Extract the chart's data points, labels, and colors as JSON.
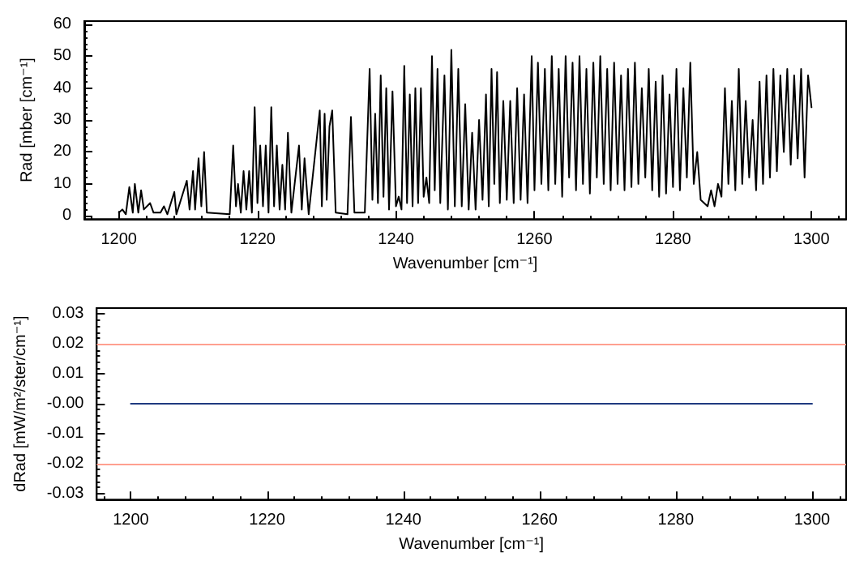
{
  "chart_data": [
    {
      "type": "line",
      "xlabel": "Wavenumber [cm⁻¹]",
      "ylabel": "Rad [mber [cm⁻¹]",
      "xlim": [
        1195,
        1305
      ],
      "xticks": [
        1200,
        1220,
        1240,
        1260,
        1280,
        1300
      ],
      "ylim": [
        -1,
        61
      ],
      "yticks": [
        0,
        10,
        20,
        30,
        40,
        50,
        60
      ],
      "marker": "none",
      "series": [
        {
          "color": "#000000",
          "x": [
            1200,
            1200.5,
            1201,
            1201.5,
            1202,
            1202.3,
            1202.8,
            1203.2,
            1203.6,
            1204.5,
            1205,
            1206,
            1206.5,
            1207,
            1208,
            1208.3,
            1209.8,
            1210.2,
            1210.7,
            1211,
            1211.5,
            1211.9,
            1212.3,
            1212.7,
            1216,
            1216.5,
            1216.9,
            1217.2,
            1217.6,
            1218,
            1218.4,
            1218.8,
            1219.2,
            1219.6,
            1220,
            1220.4,
            1220.8,
            1221.2,
            1221.6,
            1222,
            1222.4,
            1222.8,
            1223.2,
            1223.6,
            1224,
            1224.4,
            1224.9,
            1226,
            1226.4,
            1226.8,
            1227.4,
            1229,
            1229.3,
            1229.7,
            1230,
            1230.4,
            1230.8,
            1231.3,
            1233,
            1233.5,
            1234,
            1235.5,
            1236.2,
            1236.6,
            1237,
            1237.4,
            1237.8,
            1238.2,
            1238.6,
            1239,
            1239.5,
            1240,
            1240.4,
            1240.8,
            1241.2,
            1241.6,
            1242,
            1242.4,
            1242.8,
            1243.2,
            1243.6,
            1244,
            1244.4,
            1244.8,
            1245.2,
            1245.6,
            1246,
            1246.4,
            1247,
            1247.5,
            1248,
            1248.5,
            1249,
            1249.5,
            1250,
            1250.5,
            1251,
            1251.5,
            1252,
            1252.5,
            1253,
            1253.4,
            1253.8,
            1254.2,
            1254.6,
            1255,
            1255.5,
            1256,
            1256.5,
            1257,
            1257.5,
            1258,
            1258.5,
            1259,
            1259.6,
            1260,
            1260.5,
            1261,
            1261.5,
            1262,
            1262.5,
            1263,
            1263.5,
            1264,
            1264.5,
            1265,
            1265.5,
            1266,
            1266.5,
            1267,
            1267.5,
            1268,
            1268.5,
            1269,
            1269.5,
            1270,
            1270.5,
            1271,
            1271.5,
            1272,
            1272.5,
            1273,
            1273.5,
            1274,
            1274.5,
            1275,
            1275.5,
            1276,
            1276.5,
            1277,
            1277.5,
            1278,
            1278.5,
            1279,
            1279.5,
            1280,
            1280.5,
            1281,
            1281.5,
            1282,
            1282.5,
            1283,
            1283.5,
            1284,
            1284.5,
            1285,
            1285.5,
            1286,
            1286.5,
            1287,
            1287.5,
            1288,
            1288.5,
            1289,
            1289.5,
            1290,
            1290.5,
            1291,
            1291.5,
            1292,
            1292.5,
            1293,
            1293.5,
            1294,
            1294.5,
            1295,
            1295.5,
            1296,
            1296.5,
            1297,
            1297.5,
            1298,
            1298.5,
            1299,
            1299.5,
            1300
          ],
          "values": [
            1,
            2,
            0.5,
            9,
            1,
            10,
            1,
            8,
            2,
            4,
            1,
            1,
            3,
            0.5,
            7.5,
            0.5,
            11,
            2,
            14,
            2,
            18,
            3,
            20,
            1,
            0.5,
            22,
            3,
            10,
            1,
            14,
            2,
            14,
            1,
            34,
            4,
            22,
            3,
            22,
            1,
            34,
            3,
            22,
            2,
            16,
            2,
            26,
            1,
            22,
            2,
            18,
            0.5,
            33,
            3,
            32,
            5,
            28,
            33,
            1,
            0.5,
            31,
            1,
            1,
            46,
            5,
            32,
            4,
            44,
            6,
            40,
            2,
            39,
            3,
            6,
            2,
            47,
            4,
            38,
            3,
            40,
            4,
            40,
            6,
            12,
            4,
            50,
            8,
            46,
            4,
            44,
            2,
            52,
            3,
            46,
            3,
            35,
            2,
            26,
            2,
            30,
            5,
            38,
            3,
            46,
            10,
            45,
            4,
            36,
            5,
            36,
            4,
            40,
            5,
            38,
            4,
            50,
            8,
            48,
            10,
            46,
            8,
            50,
            10,
            46,
            6,
            50,
            12,
            48,
            8,
            50,
            10,
            46,
            7,
            48,
            12,
            50,
            10,
            46,
            8,
            48,
            10,
            44,
            8,
            46,
            9,
            48,
            10,
            40,
            12,
            46,
            8,
            42,
            6,
            44,
            7,
            38,
            9,
            46,
            8,
            40,
            12,
            48,
            10,
            20,
            5,
            4,
            3,
            8,
            3,
            10,
            6,
            40,
            10,
            36,
            8,
            46,
            10,
            36,
            12,
            30,
            8,
            42,
            10,
            44,
            12,
            46,
            14,
            44,
            20,
            46,
            16,
            44,
            18,
            46,
            12,
            44,
            34
          ]
        }
      ]
    },
    {
      "type": "line",
      "xlabel": "Wavenumber [cm⁻¹]",
      "ylabel": "dRad [mW/m²/ster/cm⁻¹]",
      "xlim": [
        1195,
        1305
      ],
      "xticks": [
        1200,
        1220,
        1240,
        1260,
        1280,
        1300
      ],
      "ylim": [
        -0.032,
        0.032
      ],
      "yticks": [
        -0.03,
        -0.02,
        -0.01,
        {
          "value": 0,
          "label": "-0.00"
        },
        0.01,
        0.02,
        0.03
      ],
      "marker": "none",
      "ref_lines": [
        {
          "axis": "y",
          "value": 0.02,
          "color": "#ffa090"
        },
        {
          "axis": "y",
          "value": -0.02,
          "color": "#ffa090"
        }
      ],
      "series": [
        {
          "color": "#1f3a80",
          "x": [
            1200,
            1210,
            1220,
            1230,
            1240,
            1250,
            1260,
            1270,
            1280,
            1290,
            1300
          ],
          "values": [
            0,
            0,
            0,
            0,
            0,
            0,
            0,
            0,
            0,
            0,
            0
          ]
        }
      ]
    }
  ]
}
